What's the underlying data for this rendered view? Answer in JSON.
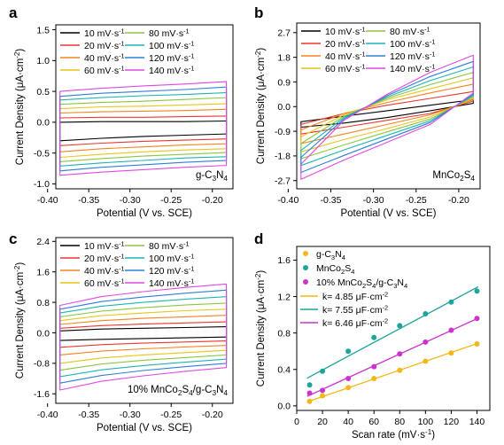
{
  "chart_data": [
    {
      "panel": "a",
      "type": "line",
      "sample_label": "g-C3N4",
      "xlabel": "Potential (V vs. SCE)",
      "ylabel": "Current Density (μA·cm⁻²)",
      "xlim": [
        -0.39,
        -0.175
      ],
      "ylim": [
        -1.08,
        1.58
      ],
      "xticks": [
        -0.4,
        -0.35,
        -0.3,
        -0.25,
        -0.2
      ],
      "xtick_labels": [
        "-0.40",
        "-0.35",
        "-0.30",
        "-0.25",
        "-0.20"
      ],
      "yticks": [
        -1.0,
        -0.5,
        0.0,
        0.5,
        1.0,
        1.5
      ],
      "ytick_labels": [
        "-1.0",
        "-0.5",
        "0.0",
        "0.5",
        "1.0",
        "1.5"
      ],
      "legend": [
        {
          "label": "10 mV·s⁻¹",
          "color": "#000000"
        },
        {
          "label": "80 mV·s⁻¹",
          "color": "#8cc63f"
        },
        {
          "label": "20 mV·s⁻¹",
          "color": "#e8382f"
        },
        {
          "label": "100 mV·s⁻¹",
          "color": "#1fb4b4"
        },
        {
          "label": "40 mV·s⁻¹",
          "color": "#f58220"
        },
        {
          "label": "120 mV·s⁻¹",
          "color": "#2e7dd7"
        },
        {
          "label": "60 mV·s⁻¹",
          "color": "#e6c619"
        },
        {
          "label": "140 mV·s⁻¹",
          "color": "#e048e0"
        }
      ],
      "series": [
        {
          "name": "10 mV·s⁻¹",
          "top": [
            0.0,
            0.01,
            0.01,
            0.01,
            0.02
          ],
          "bottom": [
            -0.3,
            -0.26,
            -0.23,
            -0.21,
            -0.19
          ]
        },
        {
          "name": "20 mV·s⁻¹",
          "top": [
            0.07,
            0.08,
            0.08,
            0.09,
            0.1
          ],
          "bottom": [
            -0.38,
            -0.34,
            -0.31,
            -0.29,
            -0.27
          ]
        },
        {
          "name": "40 mV·s⁻¹",
          "top": [
            0.15,
            0.17,
            0.18,
            0.19,
            0.21
          ],
          "bottom": [
            -0.48,
            -0.43,
            -0.4,
            -0.37,
            -0.35
          ]
        },
        {
          "name": "60 mV·s⁻¹",
          "top": [
            0.22,
            0.25,
            0.26,
            0.28,
            0.3
          ],
          "bottom": [
            -0.57,
            -0.52,
            -0.48,
            -0.45,
            -0.43
          ]
        },
        {
          "name": "80 mV·s⁻¹",
          "top": [
            0.29,
            0.32,
            0.34,
            0.37,
            0.4
          ],
          "bottom": [
            -0.64,
            -0.59,
            -0.55,
            -0.52,
            -0.49
          ]
        },
        {
          "name": "100 mV·s⁻¹",
          "top": [
            0.36,
            0.4,
            0.43,
            0.45,
            0.48
          ],
          "bottom": [
            -0.71,
            -0.66,
            -0.62,
            -0.58,
            -0.56
          ]
        },
        {
          "name": "120 mV·s⁻¹",
          "top": [
            0.42,
            0.47,
            0.5,
            0.53,
            0.57
          ],
          "bottom": [
            -0.79,
            -0.73,
            -0.69,
            -0.65,
            -0.62
          ]
        },
        {
          "name": "140 mV·s⁻¹",
          "top": [
            0.5,
            0.55,
            0.59,
            0.62,
            0.66
          ],
          "bottom": [
            -0.86,
            -0.81,
            -0.77,
            -0.73,
            -0.7
          ]
        }
      ]
    },
    {
      "panel": "b",
      "type": "line",
      "sample_label": "MnCo2S4",
      "xlabel": "Potential (V vs. SCE)",
      "ylabel": "Current Density (μA·cm⁻²)",
      "xlim": [
        -0.39,
        -0.175
      ],
      "ylim": [
        -3.0,
        3.05
      ],
      "xticks": [
        -0.4,
        -0.35,
        -0.3,
        -0.25,
        -0.2
      ],
      "xtick_labels": [
        "-0.40",
        "-0.35",
        "-0.30",
        "-0.25",
        "-0.20"
      ],
      "yticks": [
        -2.7,
        -1.8,
        -0.9,
        0.0,
        0.9,
        1.8,
        2.7
      ],
      "ytick_labels": [
        "-2.7",
        "-1.8",
        "-0.9",
        "0.0",
        "0.9",
        "1.8",
        "2.7"
      ],
      "legend": [
        {
          "label": "10 mV·s⁻¹",
          "color": "#000000"
        },
        {
          "label": "80 mV·s⁻¹",
          "color": "#8cc63f"
        },
        {
          "label": "20 mV·s⁻¹",
          "color": "#e8382f"
        },
        {
          "label": "100 mV·s⁻¹",
          "color": "#1fb4b4"
        },
        {
          "label": "40 mV·s⁻¹",
          "color": "#f58220"
        },
        {
          "label": "120 mV·s⁻¹",
          "color": "#2e7dd7"
        },
        {
          "label": "60 mV·s⁻¹",
          "color": "#e6c619"
        },
        {
          "label": "140 mV·s⁻¹",
          "color": "#e048e0"
        }
      ],
      "series": [
        {
          "name": "10 mV·s⁻¹",
          "top": [
            -0.55,
            -0.35,
            -0.15,
            0.05,
            0.25
          ],
          "bottom": [
            -0.75,
            -0.6,
            -0.4,
            -0.15,
            0.12
          ]
        },
        {
          "name": "20 mV·s⁻¹",
          "top": [
            -0.65,
            -0.25,
            0.05,
            0.3,
            0.55
          ],
          "bottom": [
            -1.0,
            -0.75,
            -0.5,
            -0.25,
            0.2
          ]
        },
        {
          "name": "40 mV·s⁻¹",
          "top": [
            -0.85,
            -0.25,
            0.15,
            0.5,
            0.82
          ],
          "bottom": [
            -1.35,
            -1.0,
            -0.65,
            -0.3,
            0.25
          ]
        },
        {
          "name": "60 mV·s⁻¹",
          "top": [
            -1.1,
            -0.3,
            0.25,
            0.65,
            1.05
          ],
          "bottom": [
            -1.65,
            -1.2,
            -0.8,
            -0.38,
            0.3
          ]
        },
        {
          "name": "80 mV·s⁻¹",
          "top": [
            -1.35,
            -0.35,
            0.3,
            0.8,
            1.25
          ],
          "bottom": [
            -1.9,
            -1.4,
            -0.92,
            -0.45,
            0.35
          ]
        },
        {
          "name": "100 mV·s⁻¹",
          "top": [
            -1.6,
            -0.4,
            0.35,
            0.95,
            1.45
          ],
          "bottom": [
            -2.15,
            -1.58,
            -1.05,
            -0.52,
            0.4
          ]
        },
        {
          "name": "120 mV·s⁻¹",
          "top": [
            -1.85,
            -0.45,
            0.4,
            1.1,
            1.65
          ],
          "bottom": [
            -2.4,
            -1.78,
            -1.18,
            -0.58,
            0.45
          ]
        },
        {
          "name": "140 mV·s⁻¹",
          "top": [
            -2.1,
            -0.5,
            0.45,
            1.25,
            1.88
          ],
          "bottom": [
            -2.65,
            -1.95,
            -1.3,
            -0.65,
            0.5
          ]
        }
      ]
    },
    {
      "panel": "c",
      "type": "line",
      "sample_label": "10% MnCo2S4/g-C3N4",
      "xlabel": "Potential (V vs. SCE)",
      "ylabel": "Current Density (μA·cm⁻²)",
      "xlim": [
        -0.39,
        -0.175
      ],
      "ylim": [
        -1.85,
        2.5
      ],
      "xticks": [
        -0.4,
        -0.35,
        -0.3,
        -0.25,
        -0.2
      ],
      "xtick_labels": [
        "-0.40",
        "-0.35",
        "-0.30",
        "-0.25",
        "-0.20"
      ],
      "yticks": [
        -1.6,
        -0.8,
        0.0,
        0.8,
        1.6,
        2.4
      ],
      "ytick_labels": [
        "-1.6",
        "-0.8",
        "0.0",
        "0.8",
        "1.6",
        "2.4"
      ],
      "legend": [
        {
          "label": "10 mV·s⁻¹",
          "color": "#000000"
        },
        {
          "label": "80 mV·s⁻¹",
          "color": "#8cc63f"
        },
        {
          "label": "20 mV·s⁻¹",
          "color": "#e8382f"
        },
        {
          "label": "100 mV·s⁻¹",
          "color": "#1fb4b4"
        },
        {
          "label": "40 mV·s⁻¹",
          "color": "#f58220"
        },
        {
          "label": "120 mV·s⁻¹",
          "color": "#2e7dd7"
        },
        {
          "label": "60 mV·s⁻¹",
          "color": "#e6c619"
        },
        {
          "label": "140 mV·s⁻¹",
          "color": "#e048e0"
        }
      ],
      "series": [
        {
          "name": "10 mV·s⁻¹",
          "top": [
            0.05,
            0.1,
            0.12,
            0.14,
            0.16
          ],
          "bottom": [
            -0.2,
            -0.17,
            -0.15,
            -0.13,
            -0.11
          ]
        },
        {
          "name": "20 mV·s⁻¹",
          "top": [
            0.12,
            0.19,
            0.23,
            0.26,
            0.29
          ],
          "bottom": [
            -0.38,
            -0.31,
            -0.27,
            -0.24,
            -0.21
          ]
        },
        {
          "name": "40 mV·s⁻¹",
          "top": [
            0.22,
            0.32,
            0.38,
            0.42,
            0.46
          ],
          "bottom": [
            -0.58,
            -0.48,
            -0.42,
            -0.37,
            -0.33
          ]
        },
        {
          "name": "60 mV·s⁻¹",
          "top": [
            0.32,
            0.45,
            0.52,
            0.58,
            0.62
          ],
          "bottom": [
            -0.8,
            -0.66,
            -0.58,
            -0.52,
            -0.46
          ]
        },
        {
          "name": "80 mV·s⁻¹",
          "top": [
            0.42,
            0.57,
            0.66,
            0.73,
            0.78
          ],
          "bottom": [
            -0.98,
            -0.82,
            -0.72,
            -0.65,
            -0.58
          ]
        },
        {
          "name": "100 mV·s⁻¹",
          "top": [
            0.52,
            0.7,
            0.8,
            0.88,
            0.95
          ],
          "bottom": [
            -1.15,
            -0.97,
            -0.86,
            -0.77,
            -0.69
          ]
        },
        {
          "name": "120 mV·s⁻¹",
          "top": [
            0.62,
            0.82,
            0.94,
            1.04,
            1.12
          ],
          "bottom": [
            -1.32,
            -1.12,
            -0.99,
            -0.89,
            -0.8
          ]
        },
        {
          "name": "140 mV·s⁻¹",
          "top": [
            0.72,
            0.95,
            1.08,
            1.19,
            1.28
          ],
          "bottom": [
            -1.5,
            -1.27,
            -1.13,
            -1.01,
            -0.91
          ]
        }
      ]
    },
    {
      "panel": "d",
      "type": "scatter",
      "xlabel": "Scan rate (mV·s⁻¹)",
      "ylabel": "Current Density (μA·cm⁻²)",
      "xlim": [
        0,
        150
      ],
      "ylim": [
        -0.05,
        1.75
      ],
      "xticks": [
        0,
        20,
        40,
        60,
        80,
        100,
        120,
        140
      ],
      "xtick_labels": [
        "0",
        "20",
        "40",
        "60",
        "80",
        "100",
        "120",
        "140"
      ],
      "yticks": [
        0.0,
        0.4,
        0.8,
        1.2,
        1.6
      ],
      "ytick_labels": [
        "0.0",
        "0.4",
        "0.8",
        "1.2",
        "1.6"
      ],
      "x": [
        10,
        20,
        40,
        60,
        80,
        100,
        120,
        140
      ],
      "series": [
        {
          "name": "g-C3N4",
          "color": "#f2b817",
          "values": [
            0.05,
            0.11,
            0.2,
            0.3,
            0.39,
            0.49,
            0.58,
            0.68
          ],
          "fit_slope": 0.00485
        },
        {
          "name": "MnCo2S4",
          "color": "#1fa39b",
          "values": [
            0.23,
            0.38,
            0.6,
            0.75,
            0.88,
            1.01,
            1.14,
            1.26
          ],
          "fit_slope": 0.00755
        },
        {
          "name": "10% MnCo2S4/g-C3N4",
          "color": "#cc33cc",
          "values": [
            0.14,
            0.17,
            0.3,
            0.43,
            0.57,
            0.7,
            0.83,
            0.96
          ],
          "fit_slope": 0.00646
        }
      ],
      "fit_legend": [
        {
          "label": "k= 4.85 μF·cm⁻²",
          "color": "#f2b817"
        },
        {
          "label": "k= 7.55 μF·cm⁻²",
          "color": "#1fa39b"
        },
        {
          "label": "k= 6.46 μF·cm⁻²",
          "color": "#cc33cc"
        }
      ]
    }
  ]
}
